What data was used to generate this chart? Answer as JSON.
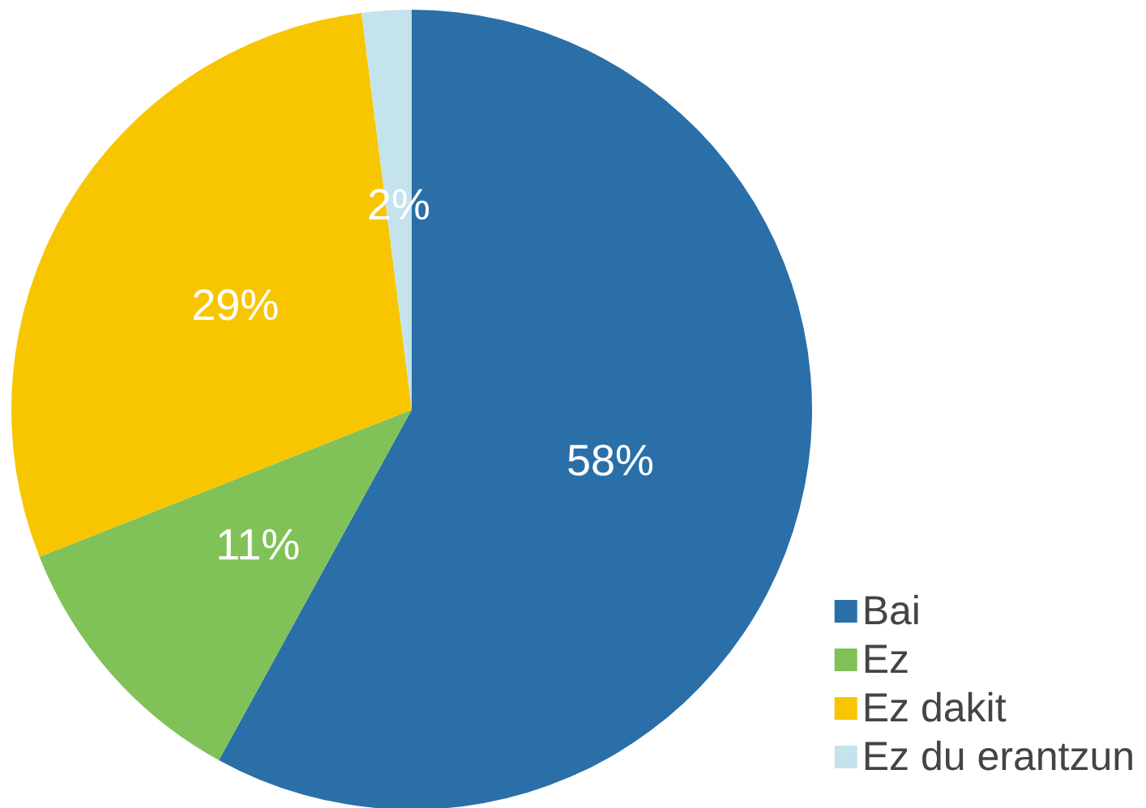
{
  "chart_data": {
    "type": "pie",
    "categories": [
      "Bai",
      "Ez",
      "Ez dakit",
      "Ez du erantzun"
    ],
    "values": [
      58,
      11,
      29,
      2
    ],
    "value_labels": [
      "58%",
      "11%",
      "29%",
      "2%"
    ],
    "colors": [
      "#2a6fa8",
      "#80c257",
      "#f8c600",
      "#c4e3ec"
    ],
    "legend": "bottom right"
  }
}
